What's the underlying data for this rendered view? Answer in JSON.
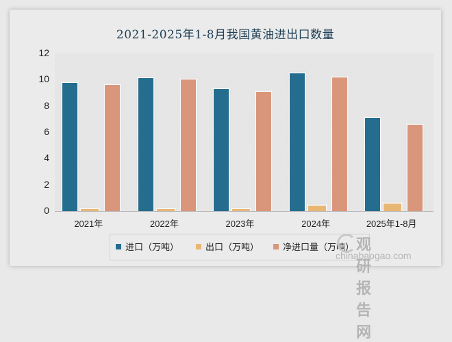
{
  "title": "2021-2025年1-8月我国黄油进出口数量",
  "chart_data": {
    "type": "bar",
    "title": "2021-2025年1-8月我国黄油进出口数量",
    "categories": [
      "2021年",
      "2022年",
      "2023年",
      "2024年",
      "2025年1-8月"
    ],
    "series": [
      {
        "name": "进口（万吨）",
        "color": "#256d8f",
        "values": [
          9.75,
          10.1,
          9.3,
          10.5,
          7.1
        ]
      },
      {
        "name": "出口（万吨）",
        "color": "#e9b774",
        "values": [
          0.15,
          0.15,
          0.15,
          0.4,
          0.6
        ]
      },
      {
        "name": "净进口量（万吨）",
        "color": "#d9967a",
        "values": [
          9.6,
          10.0,
          9.1,
          10.15,
          6.6
        ]
      }
    ],
    "xlabel": "",
    "ylabel": "",
    "ylim": [
      0,
      12
    ],
    "yticks": [
      0,
      2,
      4,
      6,
      8,
      10,
      12
    ],
    "grid": false,
    "legend_position": "bottom"
  },
  "y_axis": {
    "ticks": [
      "12",
      "10",
      "8",
      "6",
      "4",
      "2",
      "0"
    ]
  },
  "legend": {
    "items": [
      {
        "label": "进口（万吨）",
        "color": "#256d8f"
      },
      {
        "label": "出口（万吨）",
        "color": "#e9b774"
      },
      {
        "label": "净进口量（万吨）",
        "color": "#d9967a"
      }
    ]
  },
  "watermark": {
    "cn": "观研报告网",
    "en": "chinabaogao.com"
  }
}
